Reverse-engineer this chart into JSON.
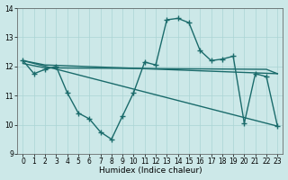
{
  "title": "",
  "xlabel": "Humidex (Indice chaleur)",
  "xlim": [
    -0.5,
    23.5
  ],
  "ylim": [
    9,
    14
  ],
  "yticks": [
    9,
    10,
    11,
    12,
    13,
    14
  ],
  "xticks": [
    0,
    1,
    2,
    3,
    4,
    5,
    6,
    7,
    8,
    9,
    10,
    11,
    12,
    13,
    14,
    15,
    16,
    17,
    18,
    19,
    20,
    21,
    22,
    23
  ],
  "bg_color": "#cce8e8",
  "line_color": "#1a6b6b",
  "grid_color": "#aad4d4",
  "lines": [
    {
      "x": [
        0,
        1,
        2,
        3,
        4,
        5,
        6,
        7,
        8,
        9,
        10,
        11,
        12,
        13,
        14,
        15,
        16,
        17,
        18,
        19,
        20,
        21,
        22,
        23
      ],
      "y": [
        12.2,
        11.75,
        11.9,
        12.0,
        11.1,
        10.4,
        10.2,
        9.75,
        9.5,
        10.3,
        11.1,
        12.15,
        12.05,
        13.6,
        13.65,
        13.5,
        12.55,
        12.2,
        12.25,
        12.35,
        10.05,
        11.75,
        11.65,
        9.95
      ],
      "marker": "+",
      "markersize": 4,
      "linewidth": 1.0
    },
    {
      "x": [
        0,
        23
      ],
      "y": [
        12.2,
        9.95
      ],
      "marker": null,
      "markersize": 0,
      "linewidth": 1.0
    },
    {
      "x": [
        0,
        2,
        23
      ],
      "y": [
        12.2,
        12.05,
        11.75
      ],
      "marker": null,
      "markersize": 0,
      "linewidth": 1.0
    },
    {
      "x": [
        0,
        2,
        22,
        23
      ],
      "y": [
        12.1,
        11.95,
        11.9,
        11.75
      ],
      "marker": null,
      "markersize": 0,
      "linewidth": 1.0
    }
  ]
}
